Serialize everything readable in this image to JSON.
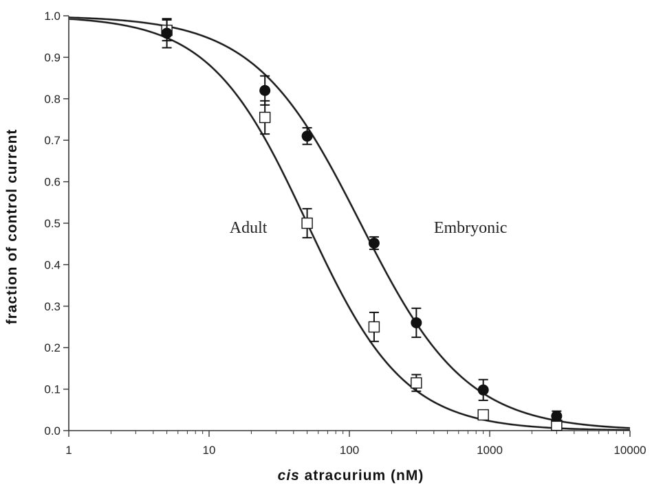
{
  "chart_data": {
    "type": "scatter",
    "xscale": "log",
    "xlim": [
      1,
      10000
    ],
    "ylim": [
      0,
      1.0
    ],
    "xticks": [
      "1",
      "10",
      "100",
      "1000",
      "10000"
    ],
    "yticks": [
      "0.0",
      "0.1",
      "0.2",
      "0.3",
      "0.4",
      "0.5",
      "0.6",
      "0.7",
      "0.8",
      "0.9",
      "1.0"
    ],
    "xlabel_italic": "cis",
    "xlabel_rest": " atracurium (nM)",
    "ylabel": "fraction of control current",
    "annotations": [
      {
        "text": "Adult",
        "x": 14,
        "y": 0.49
      },
      {
        "text": "Embryonic",
        "x": 400,
        "y": 0.49
      }
    ],
    "series": [
      {
        "marker": "open-square",
        "x": [
          5,
          25,
          50,
          150,
          300,
          900,
          3000
        ],
        "y": [
          0.965,
          0.755,
          0.5,
          0.25,
          0.115,
          0.038,
          0.013
        ],
        "err": [
          0.025,
          0.04,
          0.035,
          0.035,
          0.02,
          0.008,
          0.005
        ],
        "fit": {
          "ic50": 50,
          "hill": 1.25
        }
      },
      {
        "marker": "filled-circle",
        "x": [
          5,
          25,
          50,
          150,
          300,
          900,
          3000
        ],
        "y": [
          0.958,
          0.82,
          0.71,
          0.452,
          0.26,
          0.098,
          0.035
        ],
        "err": [
          0.035,
          0.035,
          0.02,
          0.015,
          0.035,
          0.025,
          0.012
        ],
        "fit": {
          "ic50": 120,
          "hill": 1.15
        }
      }
    ],
    "colors": {
      "dark_fit": "#1a1a1a",
      "light_fit": "#a9a9a9",
      "marker": "#111111"
    }
  }
}
